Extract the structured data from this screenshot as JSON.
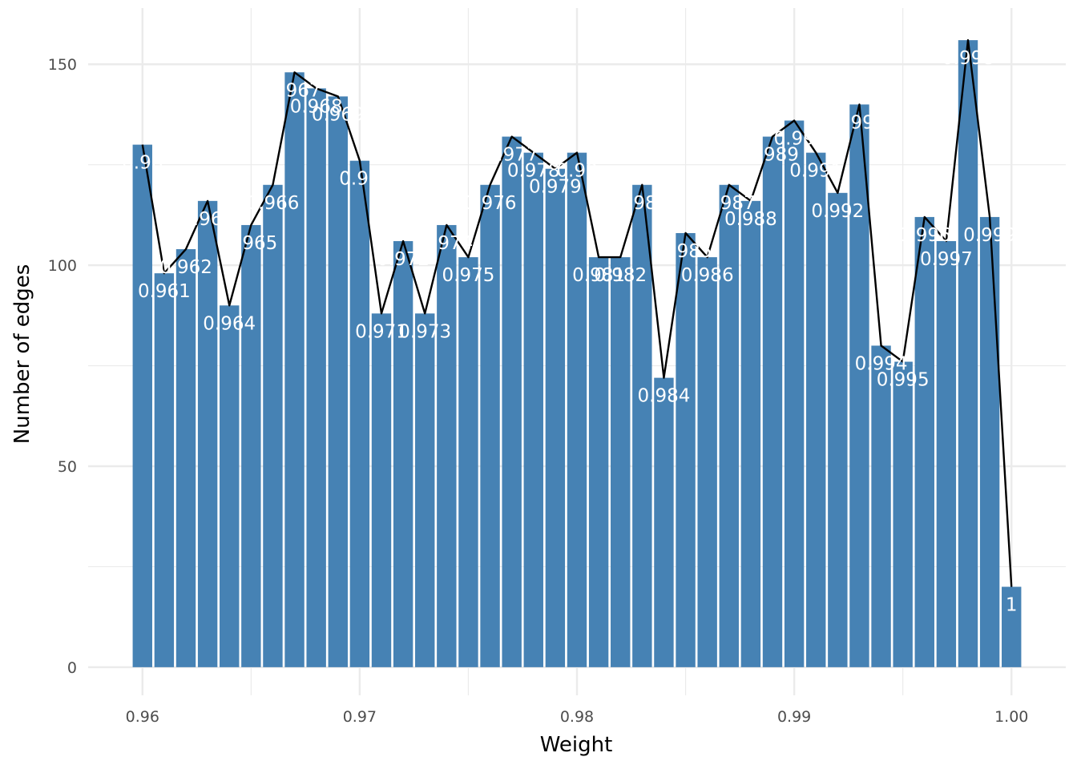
{
  "chart_data": {
    "type": "bar",
    "xlabel": "Weight",
    "ylabel": "Number of edges",
    "xlim": [
      0.9575,
      1.0025
    ],
    "ylim": [
      -7,
      164
    ],
    "x_ticks": [
      "0.96",
      "0.97",
      "0.98",
      "0.99",
      "1.00"
    ],
    "x_tick_values": [
      0.96,
      0.97,
      0.98,
      0.99,
      1.0
    ],
    "y_ticks": [
      "0",
      "50",
      "100",
      "150"
    ],
    "y_tick_values": [
      0,
      50,
      100,
      150
    ],
    "grid": true,
    "bar_color": "#4682B4",
    "line_color": "#000000",
    "label_color": "#ffffff",
    "x": [
      0.96,
      0.961,
      0.962,
      0.963,
      0.964,
      0.965,
      0.966,
      0.967,
      0.968,
      0.969,
      0.97,
      0.971,
      0.972,
      0.973,
      0.974,
      0.975,
      0.976,
      0.977,
      0.978,
      0.979,
      0.98,
      0.981,
      0.982,
      0.983,
      0.984,
      0.985,
      0.986,
      0.987,
      0.988,
      0.989,
      0.99,
      0.991,
      0.992,
      0.993,
      0.994,
      0.995,
      0.996,
      0.997,
      0.998,
      0.999,
      1.0
    ],
    "values": [
      130,
      98,
      104,
      116,
      90,
      110,
      120,
      148,
      144,
      142,
      126,
      88,
      106,
      88,
      110,
      102,
      120,
      132,
      128,
      124,
      128,
      102,
      102,
      120,
      72,
      108,
      102,
      120,
      116,
      132,
      136,
      128,
      118,
      140,
      80,
      76,
      112,
      106,
      156,
      112,
      20
    ],
    "labels": [
      "0.96",
      "0.961",
      "0.962",
      "0.963",
      "0.964",
      "0.965",
      "0.966",
      "0.967",
      "0.968",
      "0.969",
      "0.97",
      "0.971",
      "0.972",
      "0.973",
      "0.974",
      "0.975",
      "0.976",
      "0.977",
      "0.978",
      "0.979",
      "0.98",
      "0.981",
      "0.982",
      "0.983",
      "0.984",
      "0.985",
      "0.986",
      "0.987",
      "0.988",
      "0.989",
      "0.99",
      "0.991",
      "0.992",
      "0.993",
      "0.994",
      "0.995",
      "0.996",
      "0.997",
      "0.998",
      "0.999",
      "1"
    ]
  }
}
